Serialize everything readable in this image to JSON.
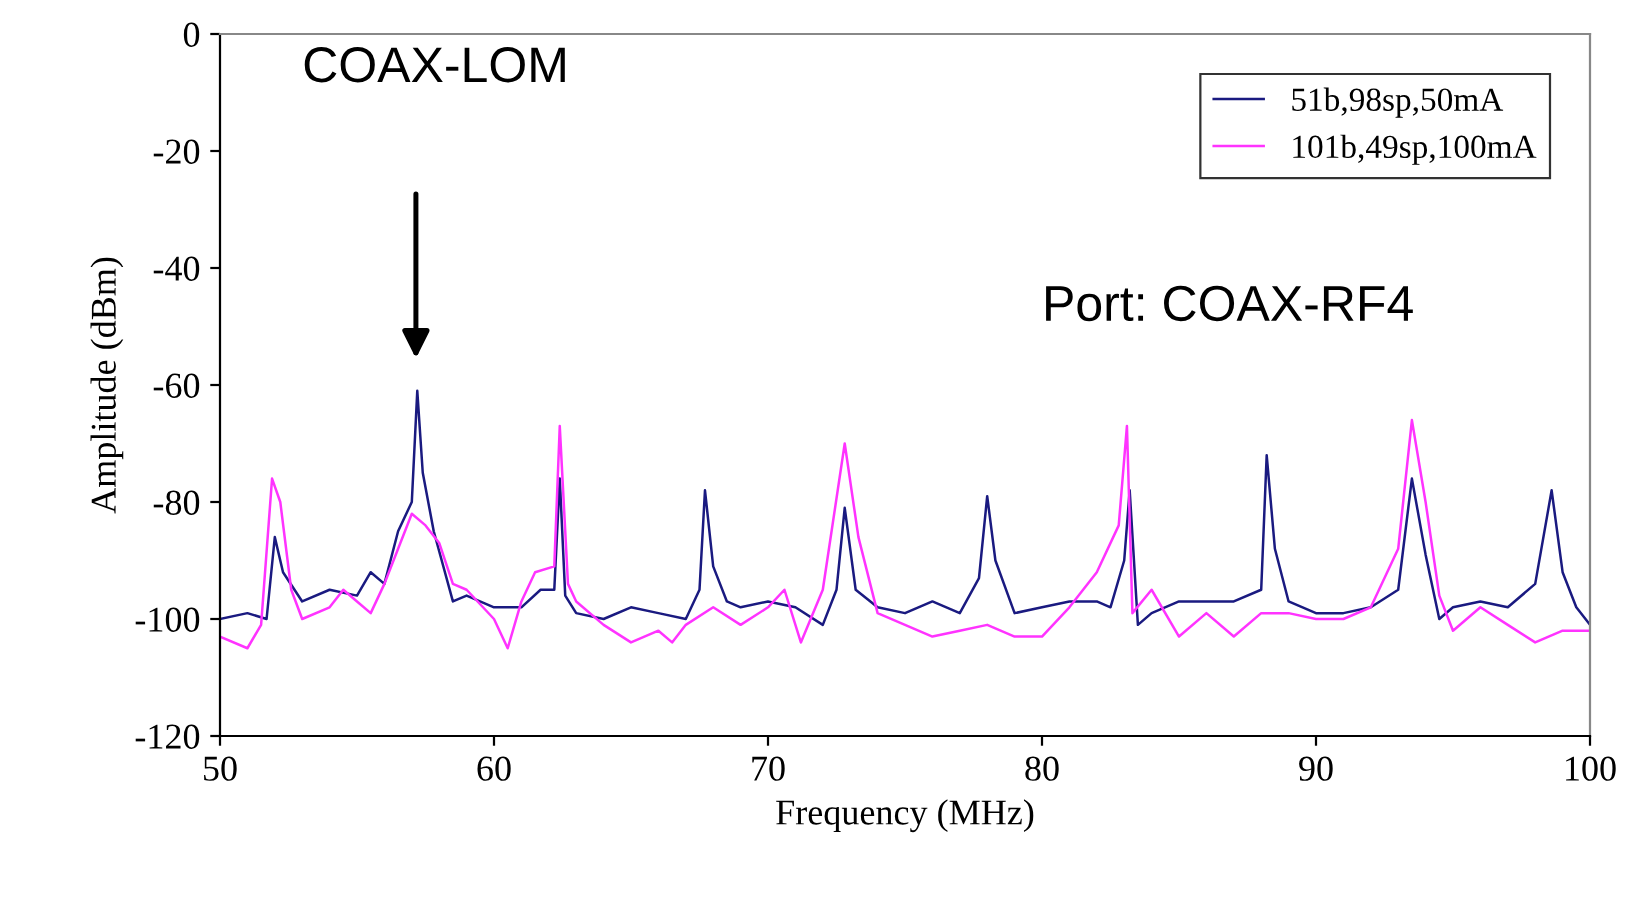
{
  "chart_data": {
    "type": "line",
    "xlabel": "Frequency (MHz)",
    "ylabel": "Amplitude (dBm)",
    "xlim": [
      50,
      100
    ],
    "ylim": [
      -120,
      0
    ],
    "xticks": [
      50,
      60,
      70,
      80,
      90,
      100
    ],
    "yticks": [
      -120,
      -100,
      -80,
      -60,
      -40,
      -20,
      0
    ],
    "grid": false,
    "legend": "top right",
    "marker": "none",
    "line_style": "solid",
    "annotations": [
      "COAX-LOM",
      "Port: COAX-RF4"
    ],
    "series": [
      {
        "name": "51b,98sp,50mA",
        "color": "#1a1a80",
        "x": [
          50,
          51,
          51.7,
          52,
          52.3,
          53,
          54,
          55,
          55.5,
          56,
          56.5,
          57,
          57.2,
          57.4,
          57.8,
          58.5,
          59,
          60,
          61,
          61.7,
          62.2,
          62.4,
          62.6,
          63,
          64,
          65,
          66,
          67,
          67.5,
          67.7,
          68,
          68.5,
          69,
          70,
          71,
          72,
          72.5,
          72.8,
          73.2,
          74,
          75,
          76,
          77,
          77.7,
          78,
          78.3,
          79,
          80,
          81,
          82,
          82.5,
          83,
          83.2,
          83.5,
          84,
          85,
          86,
          87,
          88,
          88.2,
          88.5,
          89,
          90,
          91,
          92,
          93,
          93.5,
          94,
          94.5,
          95,
          96,
          97,
          98,
          98.6,
          99,
          99.5,
          100
        ],
        "values": [
          -100,
          -99,
          -100,
          -86,
          -92,
          -97,
          -95,
          -96,
          -92,
          -94,
          -85,
          -80,
          -61,
          -75,
          -85,
          -97,
          -96,
          -98,
          -98,
          -95,
          -95,
          -76,
          -96,
          -99,
          -100,
          -98,
          -99,
          -100,
          -95,
          -78,
          -91,
          -97,
          -98,
          -97,
          -98,
          -101,
          -95,
          -81,
          -95,
          -98,
          -99,
          -97,
          -99,
          -93,
          -79,
          -90,
          -99,
          -98,
          -97,
          -97,
          -98,
          -90,
          -78,
          -101,
          -99,
          -97,
          -97,
          -97,
          -95,
          -72,
          -88,
          -97,
          -99,
          -99,
          -98,
          -95,
          -76,
          -89,
          -100,
          -98,
          -97,
          -98,
          -94,
          -78,
          -92,
          -98,
          -101
        ]
      },
      {
        "name": "101b,49sp,100mA",
        "color": "#ff33ff",
        "x": [
          50,
          51,
          51.5,
          51.9,
          52.2,
          52.6,
          53,
          54,
          54.5,
          55,
          55.5,
          56,
          56.5,
          57,
          57.5,
          58,
          58.5,
          59,
          60,
          60.5,
          61,
          61.5,
          62.2,
          62.4,
          62.7,
          63,
          64,
          65,
          66,
          66.5,
          67,
          68,
          69,
          70,
          70.6,
          71.2,
          72,
          72.8,
          73.3,
          74,
          75,
          76,
          77,
          78,
          79,
          80,
          81,
          82,
          82.8,
          83.1,
          83.3,
          84,
          85,
          86,
          87,
          88,
          89,
          90,
          91,
          92,
          93,
          93.5,
          94,
          94.5,
          95,
          96,
          97,
          98,
          99,
          100
        ],
        "values": [
          -103,
          -105,
          -101,
          -76,
          -80,
          -95,
          -100,
          -98,
          -95,
          -97,
          -99,
          -94,
          -88,
          -82,
          -84,
          -87,
          -94,
          -95,
          -100,
          -105,
          -97,
          -92,
          -91,
          -67,
          -94,
          -97,
          -101,
          -104,
          -102,
          -104,
          -101,
          -98,
          -101,
          -98,
          -95,
          -104,
          -95,
          -70,
          -86,
          -99,
          -101,
          -103,
          -102,
          -101,
          -103,
          -103,
          -98,
          -92,
          -84,
          -67,
          -99,
          -95,
          -103,
          -99,
          -103,
          -99,
          -99,
          -100,
          -100,
          -98,
          -88,
          -66,
          -80,
          -96,
          -102,
          -98,
          -101,
          -104,
          -102,
          -102
        ]
      }
    ]
  }
}
